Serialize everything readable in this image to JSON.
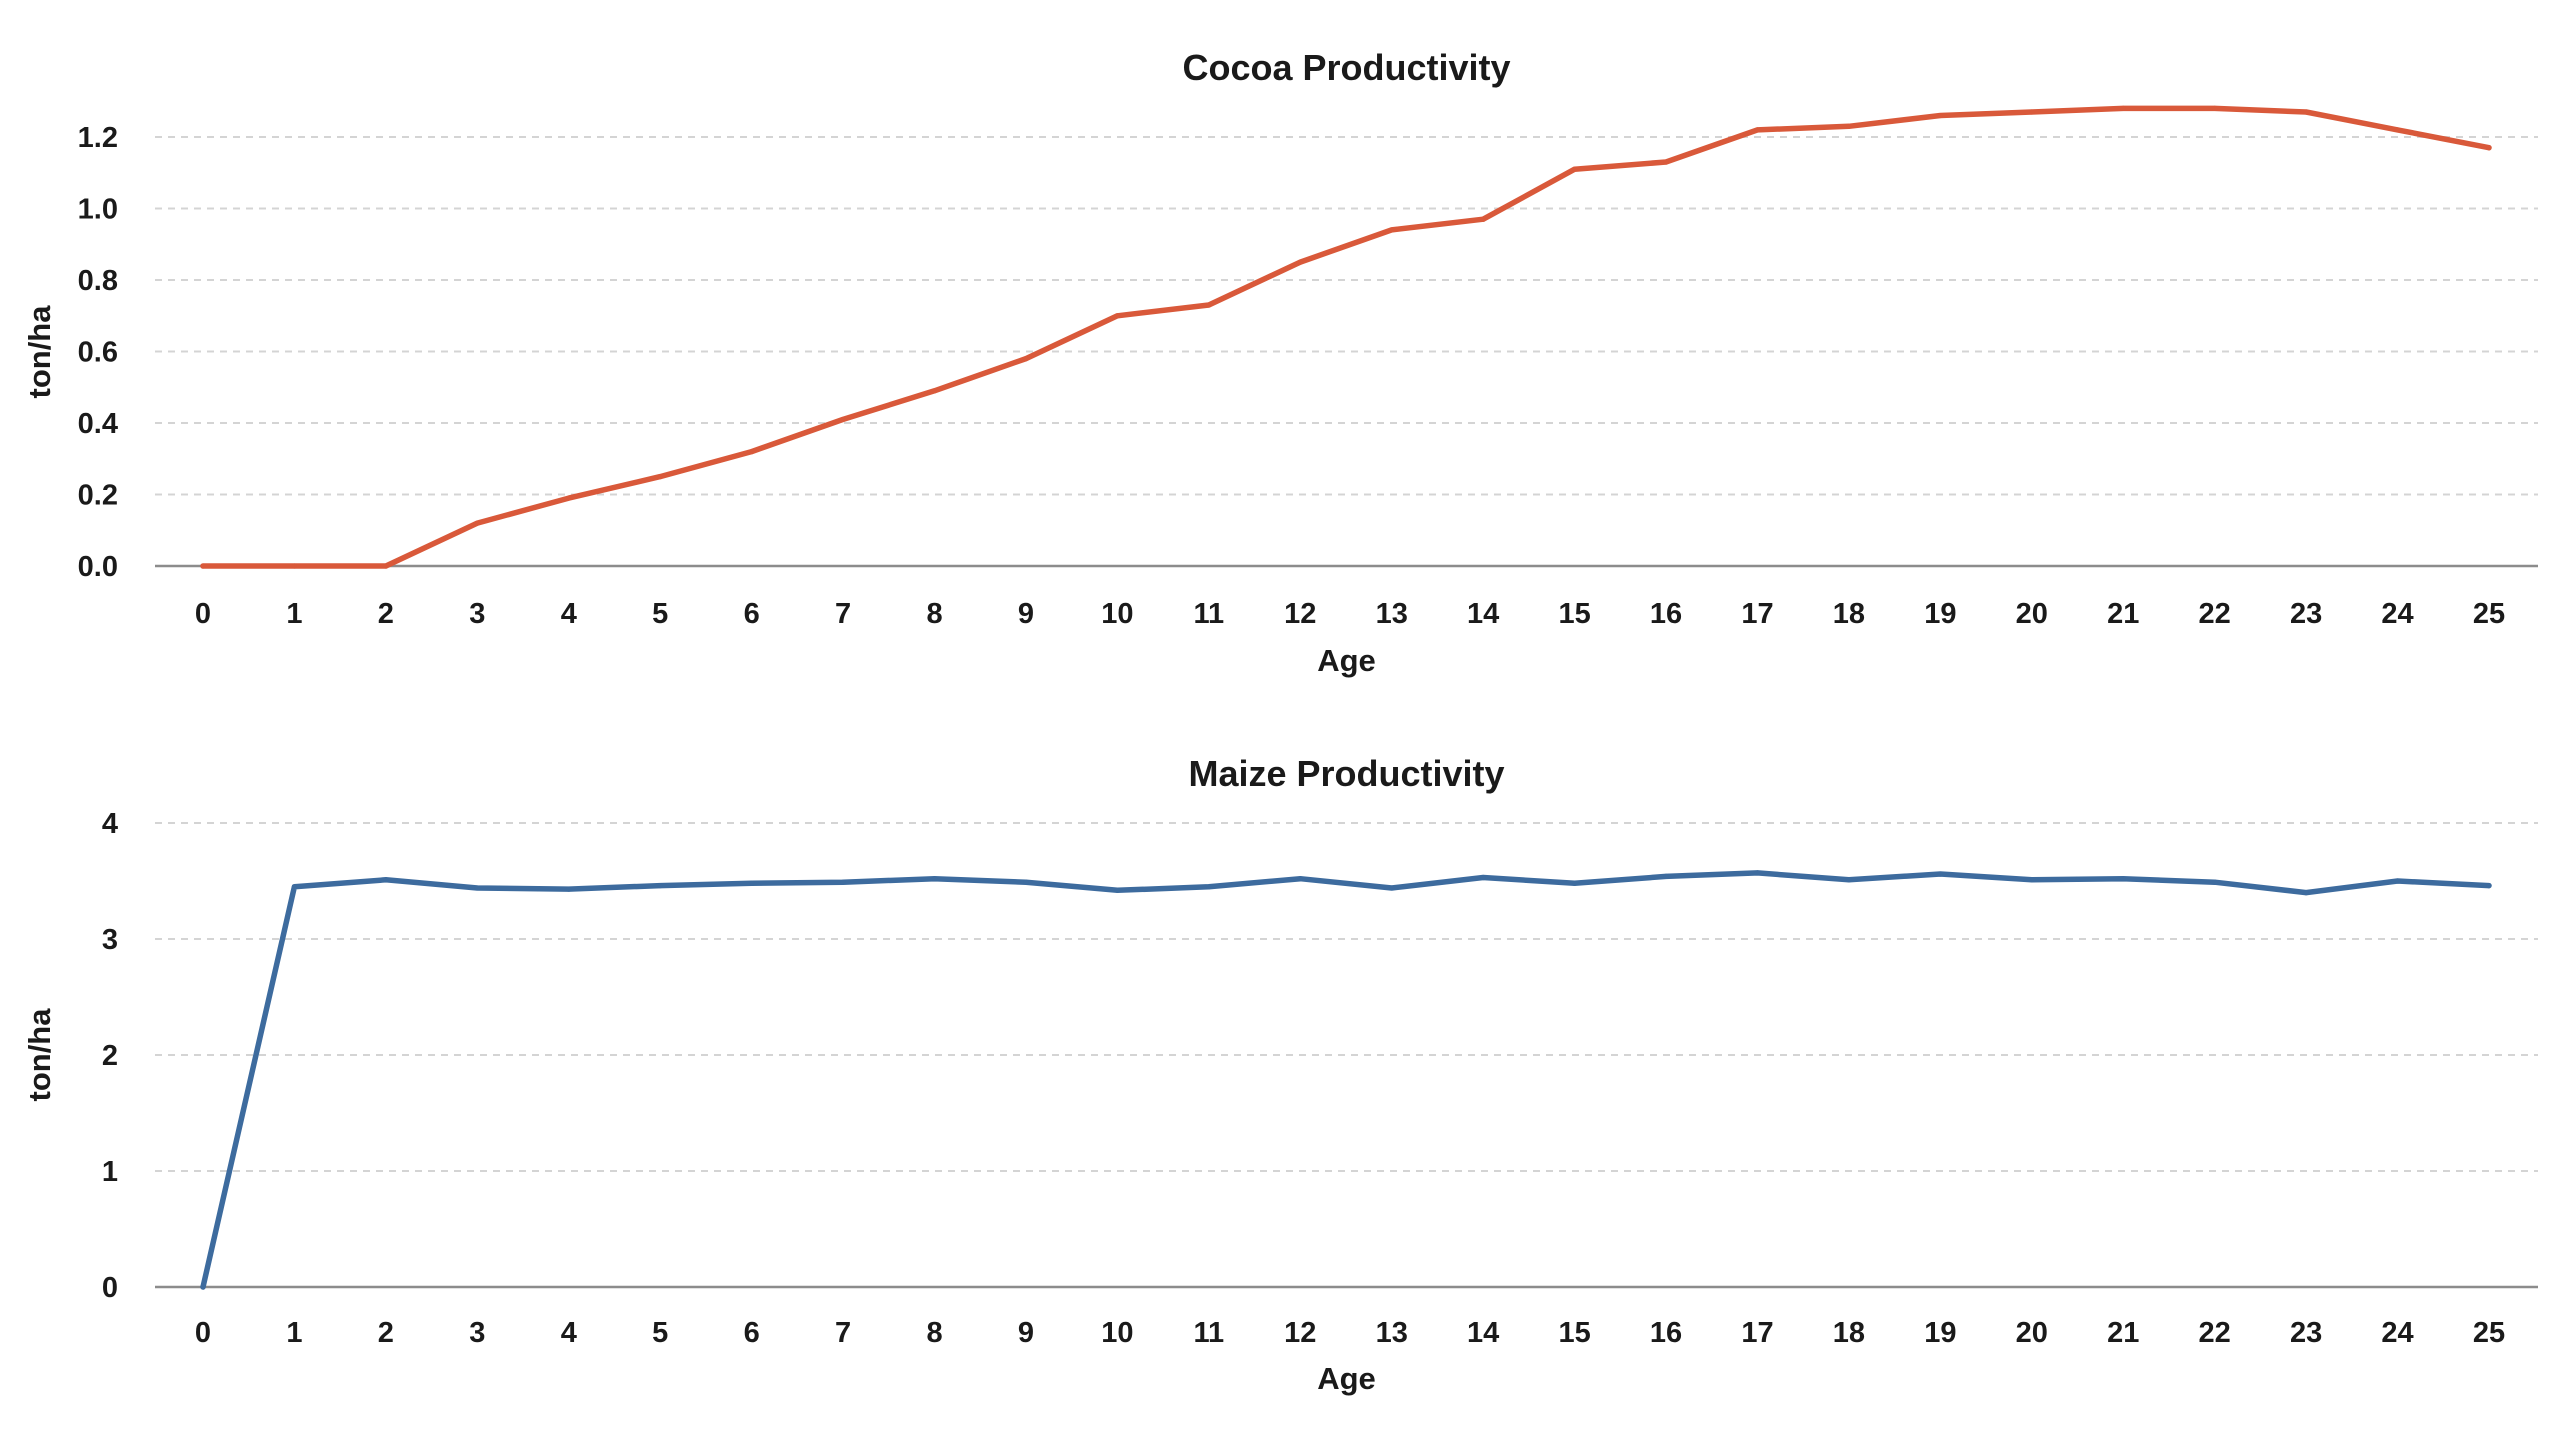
{
  "chart_data": [
    {
      "type": "line",
      "title": "Cocoa Productivity",
      "xlabel": "Age",
      "ylabel": "ton/ha",
      "x": [
        0,
        1,
        2,
        3,
        4,
        5,
        6,
        7,
        8,
        9,
        10,
        11,
        12,
        13,
        14,
        15,
        16,
        17,
        18,
        19,
        20,
        21,
        22,
        23,
        24,
        25
      ],
      "ylim": [
        0,
        1.2
      ],
      "yticks": [
        "0.0",
        "0.2",
        "0.4",
        "0.6",
        "0.8",
        "1.0",
        "1.2"
      ],
      "ytick_values": [
        0,
        0.2,
        0.4,
        0.6,
        0.8,
        1.0,
        1.2
      ],
      "grid": true,
      "series": [
        {
          "color": "#d9593a",
          "values": [
            0,
            0,
            0,
            0.12,
            0.19,
            0.25,
            0.32,
            0.41,
            0.49,
            0.58,
            0.7,
            0.73,
            0.85,
            0.94,
            0.97,
            1.11,
            1.13,
            1.22,
            1.23,
            1.26,
            1.27,
            1.28,
            1.28,
            1.27,
            1.22,
            1.17
          ]
        }
      ]
    },
    {
      "type": "line",
      "title": "Maize Productivity",
      "xlabel": "Age",
      "ylabel": "ton/ha",
      "x": [
        0,
        1,
        2,
        3,
        4,
        5,
        6,
        7,
        8,
        9,
        10,
        11,
        12,
        13,
        14,
        15,
        16,
        17,
        18,
        19,
        20,
        21,
        22,
        23,
        24,
        25
      ],
      "ylim": [
        0,
        4
      ],
      "yticks": [
        "0",
        "1",
        "2",
        "3",
        "4"
      ],
      "ytick_values": [
        0,
        1,
        2,
        3,
        4
      ],
      "grid": true,
      "series": [
        {
          "color": "#3d6b9e",
          "values": [
            0,
            3.45,
            3.51,
            3.44,
            3.43,
            3.46,
            3.48,
            3.49,
            3.52,
            3.49,
            3.42,
            3.45,
            3.52,
            3.44,
            3.53,
            3.48,
            3.54,
            3.57,
            3.51,
            3.56,
            3.51,
            3.52,
            3.49,
            3.4,
            3.5,
            3.46
          ]
        }
      ]
    }
  ]
}
